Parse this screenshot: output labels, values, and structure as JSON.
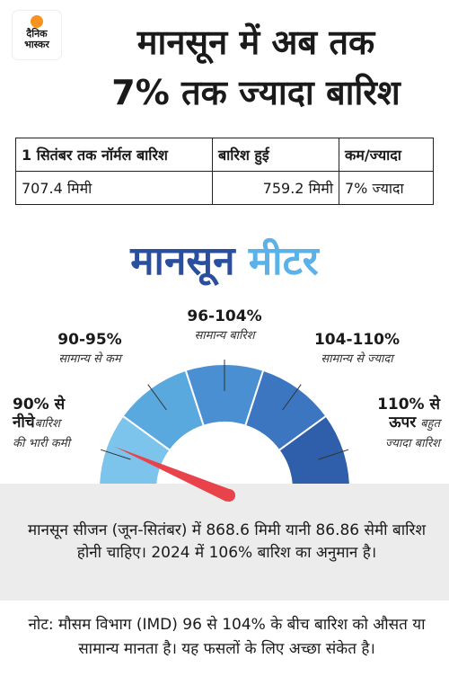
{
  "logo": {
    "line1": "दैनिक",
    "line2": "भास्कर"
  },
  "header": {
    "title_line1": "मानसून में अब तक",
    "title_line2": "7% तक ज्यादा बारिश"
  },
  "table": {
    "headers": [
      "1 सितंबर तक नॉर्मल बारिश",
      "बारिश हुई",
      "कम/ज्यादा"
    ],
    "rows": [
      [
        "707.4 मिमी",
        "759.2 मिमी",
        "7% ज्यादा"
      ]
    ]
  },
  "meter": {
    "title_part1": "मानसून",
    "title_part2": "मीटर",
    "segments": [
      {
        "range": "90% से",
        "range2": "नीचे",
        "desc": "बारिश",
        "desc2": "की भारी कमी"
      },
      {
        "range": "90-95%",
        "desc": "सामान्य से कम"
      },
      {
        "range": "96-104%",
        "desc": "सामान्य बारिश"
      },
      {
        "range": "104-110%",
        "desc": "सामान्य से ज्यादा"
      },
      {
        "range": "110% से",
        "range2": "ऊपर",
        "desc": "बहुत",
        "desc2": "ज्यादा बारिश"
      }
    ]
  },
  "summary": "मानसून सीजन (जून-सितंबर) में 868.6 मिमी यानी 86.86 सेमी बारिश होनी चाहिए। 2024 में 106% बारिश का अनुमान है।",
  "note": "नोट: मौसम विभाग (IMD) 96 से 104% के बीच बारिश को औसत या सामान्य मानता है। यह फसलों के लिए अच्छा संकेत है।"
}
